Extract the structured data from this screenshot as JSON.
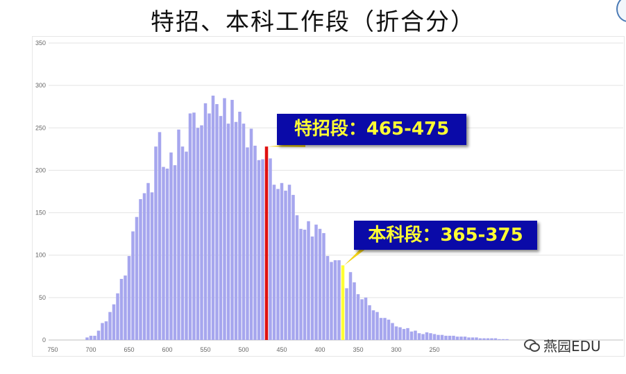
{
  "slide": {
    "title": "特招、本科工作段（折合分）",
    "callout_1": "特招段：465-475",
    "callout_2": "本科段：365-375",
    "watermark": "燕园EDU"
  },
  "icons": [
    "wechat-icon",
    "logo-icon"
  ],
  "colors": {
    "bar": "#a6a6ee",
    "special": "#e01010",
    "undergrad": "#ffff33",
    "callout_bg": "#0a0aa8",
    "callout_text": "#ffff33"
  },
  "chart_data": {
    "type": "bar",
    "title": "",
    "xlabel": "",
    "ylabel": "",
    "x_reversed": true,
    "xlim": [
      750,
      150
    ],
    "ylim": [
      0,
      350
    ],
    "grid": true,
    "x_ticks": [
      "750",
      "700",
      "650",
      "600",
      "550",
      "500",
      "450",
      "400",
      "350",
      "300",
      "250"
    ],
    "y_ticks": [
      "0",
      "50",
      "100",
      "150",
      "200",
      "250",
      "300",
      "350"
    ],
    "bin_width": 5,
    "highlights": [
      {
        "label": "特招段：465-475",
        "range": [
          465,
          475
        ],
        "color": "#e01010"
      },
      {
        "label": "本科段：365-375",
        "range": [
          365,
          375
        ],
        "color": "#ffff33"
      }
    ],
    "bins": [
      705,
      700,
      695,
      690,
      685,
      680,
      675,
      670,
      665,
      660,
      655,
      650,
      645,
      640,
      635,
      630,
      625,
      620,
      615,
      610,
      605,
      600,
      595,
      590,
      585,
      580,
      575,
      570,
      565,
      560,
      555,
      550,
      545,
      540,
      535,
      530,
      525,
      520,
      515,
      510,
      505,
      500,
      495,
      490,
      485,
      480,
      475,
      470,
      465,
      460,
      455,
      450,
      445,
      440,
      435,
      430,
      425,
      420,
      415,
      410,
      405,
      400,
      395,
      390,
      385,
      380,
      375,
      370,
      365,
      360,
      355,
      350,
      345,
      340,
      335,
      330,
      325,
      320,
      315,
      310,
      305,
      300,
      295,
      290,
      285,
      280,
      275,
      270,
      265,
      260,
      255,
      250,
      245,
      240,
      235,
      230,
      225,
      220,
      215,
      210,
      205,
      200,
      195,
      190,
      185,
      180,
      175,
      170,
      165,
      160,
      155
    ],
    "values": [
      3,
      5,
      5,
      11,
      20,
      22,
      33,
      42,
      55,
      72,
      76,
      99,
      128,
      145,
      166,
      173,
      185,
      174,
      228,
      245,
      204,
      202,
      221,
      206,
      248,
      228,
      222,
      267,
      268,
      250,
      253,
      279,
      267,
      288,
      278,
      264,
      285,
      255,
      283,
      257,
      269,
      255,
      227,
      249,
      229,
      212,
      213,
      228,
      214,
      183,
      178,
      185,
      176,
      183,
      171,
      147,
      131,
      130,
      140,
      122,
      136,
      131,
      126,
      99,
      92,
      94,
      94,
      88,
      61,
      80,
      68,
      54,
      48,
      50,
      41,
      35,
      33,
      26,
      26,
      24,
      20,
      16,
      15,
      13,
      14,
      10,
      11,
      8,
      7,
      9,
      8,
      7,
      6,
      6,
      5,
      5,
      5,
      4,
      4,
      4,
      3,
      3,
      3,
      2,
      2,
      2,
      2,
      2,
      1,
      1,
      1
    ]
  }
}
